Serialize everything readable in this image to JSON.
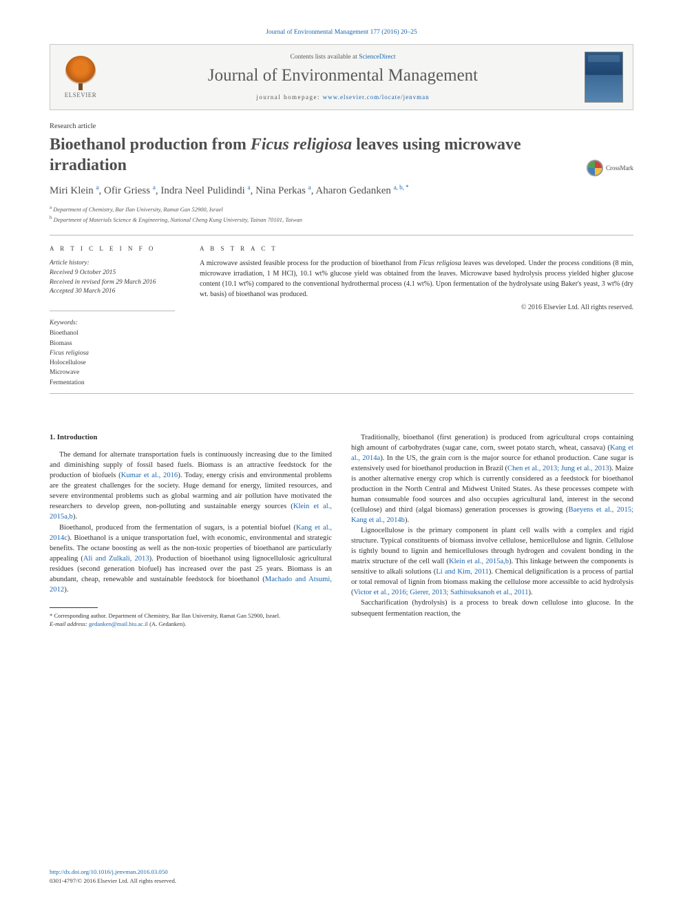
{
  "citation": "Journal of Environmental Management 177 (2016) 20–25",
  "header": {
    "publisher": "ELSEVIER",
    "contents_prefix": "Contents lists available at ",
    "contents_link": "ScienceDirect",
    "journal_name": "Journal of Environmental Management",
    "homepage_prefix": "journal homepage: ",
    "homepage_link": "www.elsevier.com/locate/jenvman"
  },
  "article_type": "Research article",
  "title_pre": "Bioethanol production from ",
  "title_em": "Ficus religiosa",
  "title_post": " leaves using microwave irradiation",
  "crossmark": "CrossMark",
  "authors_html": "Miri Klein <sup>a</sup>, Ofir Griess <sup>a</sup>, Indra Neel Pulidindi <sup>a</sup>, Nina Perkas <sup>a</sup>, Aharon Gedanken <sup>a, b, *</sup>",
  "affiliations": [
    "a Department of Chemistry, Bar Ilan University, Ramat Gan 52900, Israel",
    "b Department of Materials Science & Engineering, National Cheng Kung University, Tainan 70101, Taiwan"
  ],
  "info_label": "A R T I C L E   I N F O",
  "abstract_label": "A B S T R A C T",
  "history": {
    "label": "Article history:",
    "received": "Received 9 October 2015",
    "revised": "Received in revised form 29 March 2016",
    "accepted": "Accepted 30 March 2016"
  },
  "keywords": {
    "label": "Keywords:",
    "items": [
      "Bioethanol",
      "Biomass",
      "Ficus religiosa",
      "Holocellulose",
      "Microwave",
      "Fermentation"
    ]
  },
  "abstract_text": "A microwave assisted feasible process for the production of bioethanol from Ficus religiosa leaves was developed. Under the process conditions (8 min, microwave irradiation, 1 M HCl), 10.1 wt% glucose yield was obtained from the leaves. Microwave based hydrolysis process yielded higher glucose content (10.1 wt%) compared to the conventional hydrothermal process (4.1 wt%). Upon fermentation of the hydrolysate using Baker's yeast, 3 wt% (dry wt. basis) of bioethanol was produced.",
  "abstract_copyright": "© 2016 Elsevier Ltd. All rights reserved.",
  "body": {
    "heading1": "1. Introduction",
    "col1": [
      {
        "t": "p",
        "frags": [
          {
            "r": "The demand for alternate transportation fuels is continuously increasing due to the limited and diminishing supply of fossil based fuels. Biomass is an attractive feedstock for the production of biofuels ("
          },
          {
            "c": "Kumar et al., 2016"
          },
          {
            "r": "). Today, energy crisis and environmental problems are the greatest challenges for the society. Huge demand for energy, limited resources, and severe environmental problems such as global warming and air pollution have motivated the researchers to develop green, non-polluting and sustainable energy sources ("
          },
          {
            "c": "Klein et al., 2015a,b"
          },
          {
            "r": ")."
          }
        ]
      },
      {
        "t": "p",
        "frags": [
          {
            "r": "Bioethanol, produced from the fermentation of sugars, is a potential biofuel ("
          },
          {
            "c": "Kang et al., 2014c"
          },
          {
            "r": "). Bioethanol is a unique transportation fuel, with economic, environmental and strategic benefits. The octane boosting as well as the non-toxic properties of bioethanol are particularly appealing ("
          },
          {
            "c": "Ali and Zulkali, 2013"
          },
          {
            "r": "). Production of bioethanol using lignocellulosic agricultural residues (second generation biofuel) has increased over the past 25 years. Biomass is an abundant, cheap, renewable and sustainable feedstock for bioethanol ("
          },
          {
            "c": "Machado and Atsumi, 2012"
          },
          {
            "r": ")."
          }
        ]
      }
    ],
    "col2": [
      {
        "t": "p",
        "frags": [
          {
            "r": "Traditionally, bioethanol (first generation) is produced from agricultural crops containing high amount of carbohydrates (sugar cane, corn, sweet potato starch, wheat, cassava) ("
          },
          {
            "c": "Kang et al., 2014a"
          },
          {
            "r": "). In the US, the grain corn is the major source for ethanol production. Cane sugar is extensively used for bioethanol production in Brazil ("
          },
          {
            "c": "Chen et al., 2013; Jung et al., 2013"
          },
          {
            "r": "). Maize is another alternative energy crop which is currently considered as a feedstock for bioethanol production in the North Central and Midwest United States. As these processes compete with human consumable food sources and also occupies agricultural land, interest in the second (cellulose) and third (algal biomass) generation processes is growing ("
          },
          {
            "c": "Baeyens et al., 2015; Kang et al., 2014b"
          },
          {
            "r": ")."
          }
        ]
      },
      {
        "t": "p",
        "frags": [
          {
            "r": "Lignocellulose is the primary component in plant cell walls with a complex and rigid structure. Typical constituents of biomass involve cellulose, hemicellulose and lignin. Cellulose is tightly bound to lignin and hemicelluloses through hydrogen and covalent bonding in the matrix structure of the cell wall ("
          },
          {
            "c": "Klein et al., 2015a,b"
          },
          {
            "r": "). This linkage between the components is sensitive to alkali solutions ("
          },
          {
            "c": "Li and Kim, 2011"
          },
          {
            "r": "). Chemical delignification is a process of partial or total removal of lignin from biomass making the cellulose more accessible to acid hydrolysis ("
          },
          {
            "c": "Victor et al., 2016; Gierer, 2013; Sathitsuksanoh et al., 2011"
          },
          {
            "r": ")."
          }
        ]
      },
      {
        "t": "p",
        "frags": [
          {
            "r": "Saccharification (hydrolysis) is a process to break down cellulose into glucose. In the subsequent fermentation reaction, the"
          }
        ]
      }
    ]
  },
  "footnotes": {
    "corr": "* Corresponding author. Department of Chemistry, Bar Ilan University, Ramat Gan 52900, Israel.",
    "email_label": "E-mail address: ",
    "email": "gedanken@mail.biu.ac.il",
    "email_who": " (A. Gedanken)."
  },
  "footer": {
    "doi": "http://dx.doi.org/10.1016/j.jenvman.2016.03.050",
    "issn": "0301-4797/© 2016 Elsevier Ltd. All rights reserved."
  },
  "colors": {
    "link": "#1864b0",
    "text": "#2f2f2f",
    "muted": "#555555",
    "rule": "#b8b8b8"
  }
}
